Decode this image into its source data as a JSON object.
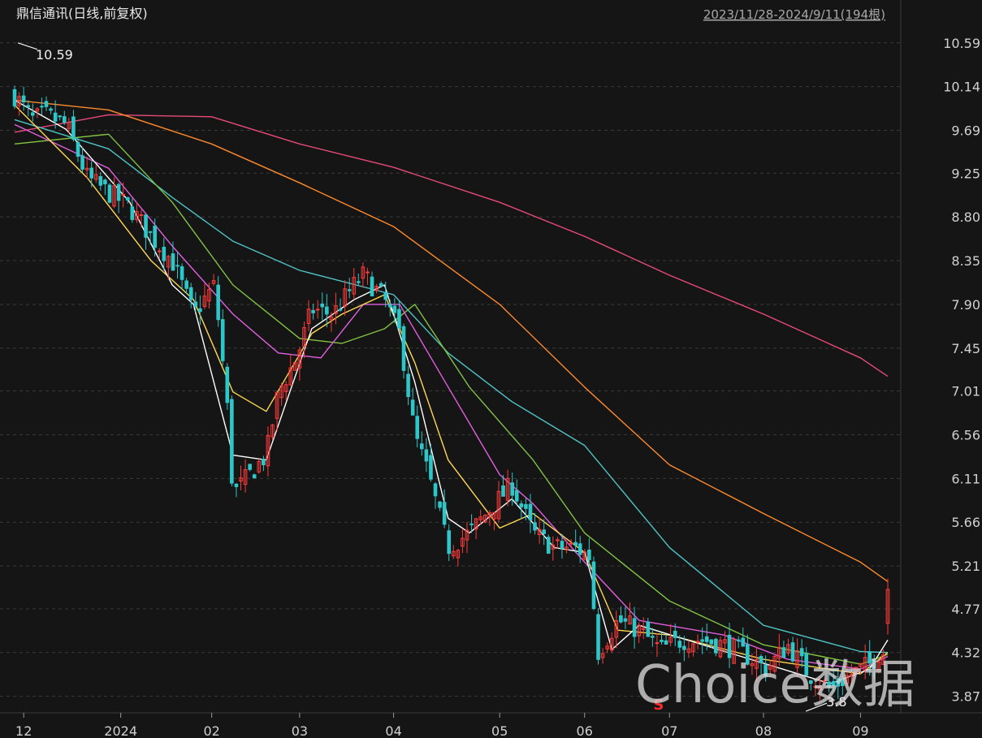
{
  "title": "鼎信通讯(日线,前复权)",
  "range_label": "2023/11/28-2024/9/11(194根)",
  "watermark": "Choice数据",
  "colors": {
    "background": "#151515",
    "up": "#ff3b3b",
    "down": "#2ec7c9",
    "ma5": "#ffffff",
    "ma10": "#ffd84d",
    "ma20": "#e25fe0",
    "ma30": "#82c341",
    "ma60": "#4fc3c6",
    "ma120": "#ff8a2a",
    "ma250": "#e84a7a"
  },
  "chart_data": {
    "type": "candlestick",
    "title": "鼎信通讯(日线,前复权)",
    "period": "2023/11/28-2024/9/11",
    "bar_count": 194,
    "ylim": [
      3.7,
      10.78
    ],
    "y_ticks": [
      "10.59",
      "10.14",
      "9.69",
      "9.25",
      "8.80",
      "8.35",
      "7.90",
      "7.45",
      "7.01",
      "6.56",
      "6.11",
      "5.66",
      "5.21",
      "4.77",
      "4.32",
      "3.87"
    ],
    "x_ticks": [
      "12",
      "2024",
      "02",
      "03",
      "04",
      "05",
      "06",
      "07",
      "08",
      "09"
    ],
    "x_tick_dates": [
      "2023-12-01",
      "2024-01-02",
      "2024-02-01",
      "2024-03-01",
      "2024-04-01",
      "2024-05-06",
      "2024-06-03",
      "2024-07-01",
      "2024-08-01",
      "2024-09-02"
    ],
    "annotations": {
      "high": {
        "label": "10.59",
        "value": 10.59,
        "date": "2023-11-28"
      },
      "low": {
        "label": "3.8",
        "value": 3.8,
        "date": "2024-08-23"
      },
      "marker": {
        "label": "S",
        "date": "2024-06-27"
      }
    },
    "close_anchors": [
      {
        "date": "2023-11-28",
        "close": 10.05
      },
      {
        "date": "2023-12-04",
        "close": 9.8
      },
      {
        "date": "2023-12-08",
        "close": 9.85
      },
      {
        "date": "2023-12-15",
        "close": 9.75
      },
      {
        "date": "2023-12-22",
        "close": 9.2
      },
      {
        "date": "2023-12-29",
        "close": 9.05
      },
      {
        "date": "2024-01-05",
        "close": 8.9
      },
      {
        "date": "2024-01-12",
        "close": 8.6
      },
      {
        "date": "2024-01-19",
        "close": 8.35
      },
      {
        "date": "2024-01-26",
        "close": 7.8
      },
      {
        "date": "2024-02-02",
        "close": 8.1
      },
      {
        "date": "2024-02-06",
        "close": 6.9
      },
      {
        "date": "2024-02-08",
        "close": 5.95
      },
      {
        "date": "2024-02-19",
        "close": 6.35
      },
      {
        "date": "2024-02-23",
        "close": 7.0
      },
      {
        "date": "2024-02-29",
        "close": 7.35
      },
      {
        "date": "2024-03-05",
        "close": 7.85
      },
      {
        "date": "2024-03-12",
        "close": 7.8
      },
      {
        "date": "2024-03-19",
        "close": 8.1
      },
      {
        "date": "2024-03-22",
        "close": 8.2
      },
      {
        "date": "2024-03-29",
        "close": 7.95
      },
      {
        "date": "2024-04-03",
        "close": 7.6
      },
      {
        "date": "2024-04-08",
        "close": 6.55
      },
      {
        "date": "2024-04-12",
        "close": 6.2
      },
      {
        "date": "2024-04-19",
        "close": 5.4
      },
      {
        "date": "2024-04-26",
        "close": 5.55
      },
      {
        "date": "2024-05-10",
        "close": 6.05
      },
      {
        "date": "2024-05-17",
        "close": 5.55
      },
      {
        "date": "2024-05-24",
        "close": 5.4
      },
      {
        "date": "2024-05-31",
        "close": 5.4
      },
      {
        "date": "2024-06-05",
        "close": 5.3
      },
      {
        "date": "2024-06-07",
        "close": 4.3
      },
      {
        "date": "2024-06-14",
        "close": 4.65
      },
      {
        "date": "2024-06-21",
        "close": 4.55
      },
      {
        "date": "2024-06-28",
        "close": 4.35
      },
      {
        "date": "2024-07-05",
        "close": 4.45
      },
      {
        "date": "2024-07-12",
        "close": 4.45
      },
      {
        "date": "2024-07-19",
        "close": 4.4
      },
      {
        "date": "2024-07-26",
        "close": 4.3
      },
      {
        "date": "2024-08-02",
        "close": 4.15
      },
      {
        "date": "2024-08-09",
        "close": 4.4
      },
      {
        "date": "2024-08-16",
        "close": 4.1
      },
      {
        "date": "2024-08-23",
        "close": 3.95
      },
      {
        "date": "2024-08-30",
        "close": 4.1
      },
      {
        "date": "2024-09-05",
        "close": 4.2
      },
      {
        "date": "2024-09-09",
        "close": 4.35
      },
      {
        "date": "2024-09-10",
        "close": 4.3
      },
      {
        "date": "2024-09-11",
        "close": 4.95
      }
    ],
    "moving_averages": [
      {
        "color": "#e84a7a",
        "points": [
          [
            "2023-11-28",
            9.67
          ],
          [
            "2023-12-29",
            9.85
          ],
          [
            "2024-02-01",
            9.83
          ],
          [
            "2024-03-01",
            9.55
          ],
          [
            "2024-04-01",
            9.31
          ],
          [
            "2024-05-06",
            8.95
          ],
          [
            "2024-06-03",
            8.6
          ],
          [
            "2024-07-01",
            8.2
          ],
          [
            "2024-08-01",
            7.8
          ],
          [
            "2024-09-02",
            7.35
          ],
          [
            "2024-09-11",
            7.16
          ]
        ]
      },
      {
        "color": "#ff8a2a",
        "points": [
          [
            "2023-11-28",
            10.0
          ],
          [
            "2023-12-29",
            9.9
          ],
          [
            "2024-02-01",
            9.55
          ],
          [
            "2024-03-01",
            9.15
          ],
          [
            "2024-04-01",
            8.7
          ],
          [
            "2024-05-06",
            7.9
          ],
          [
            "2024-06-03",
            7.05
          ],
          [
            "2024-07-01",
            6.25
          ],
          [
            "2024-08-01",
            5.75
          ],
          [
            "2024-09-02",
            5.25
          ],
          [
            "2024-09-11",
            5.05
          ]
        ]
      },
      {
        "color": "#4fc3c6",
        "points": [
          [
            "2023-11-28",
            9.8
          ],
          [
            "2023-12-29",
            9.5
          ],
          [
            "2024-01-19",
            9.0
          ],
          [
            "2024-02-08",
            8.55
          ],
          [
            "2024-03-01",
            8.25
          ],
          [
            "2024-04-01",
            8.0
          ],
          [
            "2024-04-19",
            7.4
          ],
          [
            "2024-05-10",
            6.9
          ],
          [
            "2024-06-03",
            6.45
          ],
          [
            "2024-07-01",
            5.4
          ],
          [
            "2024-08-01",
            4.6
          ],
          [
            "2024-09-02",
            4.33
          ],
          [
            "2024-09-11",
            4.32
          ]
        ]
      },
      {
        "color": "#82c341",
        "points": [
          [
            "2023-11-28",
            9.55
          ],
          [
            "2023-12-29",
            9.65
          ],
          [
            "2024-01-19",
            8.95
          ],
          [
            "2024-02-08",
            8.1
          ],
          [
            "2024-03-01",
            7.55
          ],
          [
            "2024-03-15",
            7.5
          ],
          [
            "2024-03-29",
            7.65
          ],
          [
            "2024-04-08",
            7.9
          ],
          [
            "2024-04-26",
            7.05
          ],
          [
            "2024-05-17",
            6.3
          ],
          [
            "2024-06-03",
            5.55
          ],
          [
            "2024-07-01",
            4.85
          ],
          [
            "2024-08-01",
            4.4
          ],
          [
            "2024-09-02",
            4.2
          ],
          [
            "2024-09-11",
            4.3
          ]
        ]
      },
      {
        "color": "#e25fe0",
        "points": [
          [
            "2023-11-28",
            9.75
          ],
          [
            "2023-12-29",
            9.3
          ],
          [
            "2024-01-19",
            8.5
          ],
          [
            "2024-02-08",
            7.8
          ],
          [
            "2024-02-23",
            7.4
          ],
          [
            "2024-03-08",
            7.35
          ],
          [
            "2024-03-22",
            7.9
          ],
          [
            "2024-04-03",
            7.9
          ],
          [
            "2024-04-19",
            7.05
          ],
          [
            "2024-05-06",
            6.15
          ],
          [
            "2024-05-17",
            5.85
          ],
          [
            "2024-06-03",
            5.25
          ],
          [
            "2024-06-21",
            4.65
          ],
          [
            "2024-07-19",
            4.5
          ],
          [
            "2024-08-09",
            4.25
          ],
          [
            "2024-09-02",
            4.15
          ],
          [
            "2024-09-11",
            4.28
          ]
        ]
      },
      {
        "color": "#ffd84d",
        "points": [
          [
            "2023-11-28",
            9.95
          ],
          [
            "2023-12-22",
            9.2
          ],
          [
            "2024-01-12",
            8.35
          ],
          [
            "2024-01-26",
            7.95
          ],
          [
            "2024-02-08",
            7.0
          ],
          [
            "2024-02-19",
            6.8
          ],
          [
            "2024-03-05",
            7.6
          ],
          [
            "2024-03-15",
            7.8
          ],
          [
            "2024-03-29",
            8.0
          ],
          [
            "2024-04-08",
            7.3
          ],
          [
            "2024-04-19",
            6.3
          ],
          [
            "2024-05-06",
            5.6
          ],
          [
            "2024-05-17",
            5.75
          ],
          [
            "2024-06-03",
            5.35
          ],
          [
            "2024-06-14",
            4.55
          ],
          [
            "2024-07-01",
            4.5
          ],
          [
            "2024-08-01",
            4.25
          ],
          [
            "2024-09-02",
            4.1
          ],
          [
            "2024-09-11",
            4.32
          ]
        ]
      },
      {
        "color": "#ffffff",
        "points": [
          [
            "2023-11-28",
            10.0
          ],
          [
            "2023-12-15",
            9.7
          ],
          [
            "2024-01-05",
            8.95
          ],
          [
            "2024-01-19",
            8.1
          ],
          [
            "2024-01-26",
            7.9
          ],
          [
            "2024-02-08",
            6.35
          ],
          [
            "2024-02-19",
            6.3
          ],
          [
            "2024-03-05",
            7.65
          ],
          [
            "2024-03-19",
            7.95
          ],
          [
            "2024-03-29",
            8.1
          ],
          [
            "2024-04-08",
            7.1
          ],
          [
            "2024-04-19",
            5.7
          ],
          [
            "2024-04-26",
            5.55
          ],
          [
            "2024-05-10",
            5.9
          ],
          [
            "2024-05-24",
            5.4
          ],
          [
            "2024-06-03",
            5.35
          ],
          [
            "2024-06-12",
            4.35
          ],
          [
            "2024-06-21",
            4.6
          ],
          [
            "2024-07-12",
            4.4
          ],
          [
            "2024-08-02",
            4.2
          ],
          [
            "2024-08-23",
            4.0
          ],
          [
            "2024-09-05",
            4.15
          ],
          [
            "2024-09-11",
            4.45
          ]
        ]
      }
    ]
  }
}
